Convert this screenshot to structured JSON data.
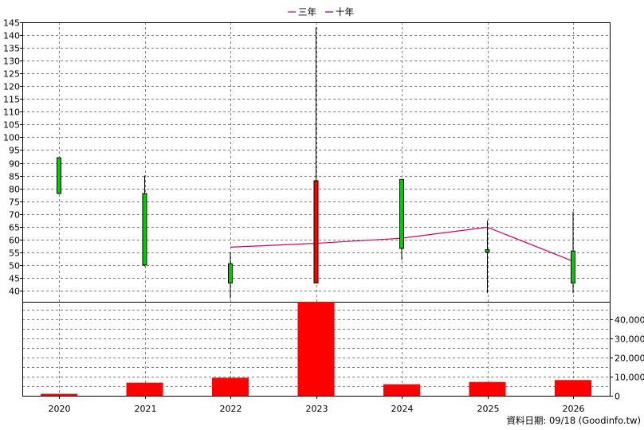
{
  "legend": {
    "items": [
      {
        "label": "三年",
        "color": "#cc0066"
      },
      {
        "label": "十年",
        "color": "#800080"
      }
    ]
  },
  "footer": {
    "note": "資料日期: 09/18 (Goodinfo.tw)"
  },
  "colors": {
    "up": "#ff0000",
    "down": "#00cc00",
    "wick": "#000000",
    "ma3": "#cc0066",
    "volume": "#ff0000",
    "grid": "#808080"
  },
  "chart_data": [
    {
      "type": "candlestick",
      "categories": [
        "2020",
        "2021",
        "2022",
        "2023",
        "2024",
        "2025",
        "2026"
      ],
      "ylim": [
        35,
        145
      ],
      "yticks": [
        40,
        45,
        50,
        55,
        60,
        65,
        70,
        75,
        80,
        85,
        90,
        95,
        100,
        105,
        110,
        115,
        120,
        125,
        130,
        135,
        140,
        145
      ],
      "candles": [
        {
          "x": "2020",
          "open": 92,
          "high": 92,
          "low": 78,
          "close": 78
        },
        {
          "x": "2021",
          "open": 78,
          "high": 85,
          "low": 49.5,
          "close": 50
        },
        {
          "x": "2022",
          "open": 50.5,
          "high": 55,
          "low": 37,
          "close": 43
        },
        {
          "x": "2023",
          "open": 43,
          "high": 143,
          "low": 43,
          "close": 83
        },
        {
          "x": "2024",
          "open": 83.5,
          "high": 83.5,
          "low": 52,
          "close": 56.5
        },
        {
          "x": "2025",
          "open": 56,
          "high": 67.5,
          "low": 39,
          "close": 55
        },
        {
          "x": "2026",
          "open": 55.5,
          "high": 71,
          "low": 39,
          "close": 43
        }
      ],
      "series": [
        {
          "name": "三年",
          "x": [
            "2022",
            "2023",
            "2024",
            "2025",
            "2026"
          ],
          "values": [
            57,
            58.5,
            60.5,
            64.8,
            51.5
          ]
        }
      ],
      "grid": true
    },
    {
      "type": "bar",
      "categories": [
        "2020",
        "2021",
        "2022",
        "2023",
        "2024",
        "2025",
        "2026"
      ],
      "values": [
        1000,
        6800,
        9400,
        49000,
        6000,
        7200,
        8200
      ],
      "ylim": [
        0,
        49000
      ],
      "yticks": [
        0,
        10000,
        20000,
        30000,
        40000
      ],
      "ytick_labels": [
        "0",
        "10,000",
        "20,000",
        "30,000",
        "40,000"
      ],
      "grid": true
    }
  ]
}
